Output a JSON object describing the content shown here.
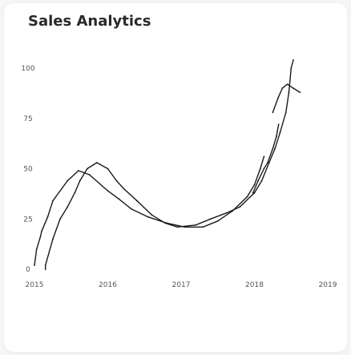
{
  "chart_data": {
    "type": "line",
    "title": "Sales Analytics",
    "xlabel": "",
    "ylabel": "",
    "x": [
      "2015",
      "2016",
      "2017",
      "2018",
      "2019"
    ],
    "y_ticks": [
      0,
      25,
      50,
      75,
      100
    ],
    "ylim": [
      0,
      100
    ],
    "grid": false,
    "series": [
      {
        "color": "#1a1a1a",
        "points": [
          [
            2015.0,
            2
          ],
          [
            2015.03,
            10
          ],
          [
            2015.08,
            16
          ],
          [
            2015.1,
            19
          ],
          [
            2015.18,
            26
          ],
          [
            2015.25,
            34
          ],
          [
            2015.45,
            44
          ],
          [
            2015.6,
            49
          ],
          [
            2015.75,
            47
          ],
          [
            2016.0,
            39
          ],
          [
            2016.15,
            35
          ],
          [
            2016.32,
            30
          ],
          [
            2016.55,
            26
          ],
          [
            2016.8,
            23
          ],
          [
            2017.05,
            21
          ],
          [
            2017.3,
            21
          ],
          [
            2017.5,
            24
          ],
          [
            2017.7,
            29
          ],
          [
            2017.9,
            36
          ],
          [
            2018.0,
            42
          ],
          [
            2018.08,
            50
          ],
          [
            2018.13,
            56
          ]
        ]
      },
      {
        "color": "#1a1a1a",
        "points": [
          [
            2015.15,
            0
          ],
          [
            2015.15,
            2
          ],
          [
            2015.25,
            15
          ],
          [
            2015.35,
            25
          ],
          [
            2015.45,
            31
          ],
          [
            2015.55,
            38
          ],
          [
            2015.62,
            44
          ],
          [
            2015.72,
            50
          ],
          [
            2015.85,
            53
          ],
          [
            2016.0,
            50
          ],
          [
            2016.12,
            44
          ],
          [
            2016.22,
            40
          ],
          [
            2016.4,
            34
          ],
          [
            2016.6,
            27
          ],
          [
            2016.78,
            23
          ],
          [
            2016.95,
            21
          ],
          [
            2017.2,
            22
          ],
          [
            2017.4,
            25
          ],
          [
            2017.62,
            28
          ],
          [
            2017.8,
            31
          ],
          [
            2018.0,
            38
          ],
          [
            2018.1,
            44
          ],
          [
            2018.2,
            53
          ],
          [
            2018.28,
            60
          ],
          [
            2018.35,
            68
          ],
          [
            2018.43,
            78
          ],
          [
            2018.47,
            88
          ],
          [
            2018.5,
            100
          ],
          [
            2018.53,
            104
          ]
        ]
      },
      {
        "color": "#1a1a1a",
        "points": [
          [
            2018.33,
            72
          ],
          [
            2018.3,
            66
          ],
          [
            2018.25,
            60
          ],
          [
            2018.18,
            53
          ],
          [
            2018.13,
            50
          ],
          [
            2018.05,
            44
          ],
          [
            2017.98,
            38
          ]
        ]
      },
      {
        "color": "#1a1a1a",
        "points": [
          [
            2018.25,
            78
          ],
          [
            2018.32,
            85
          ],
          [
            2018.38,
            90
          ],
          [
            2018.45,
            92
          ],
          [
            2018.53,
            90
          ],
          [
            2018.62,
            88
          ]
        ]
      }
    ]
  }
}
